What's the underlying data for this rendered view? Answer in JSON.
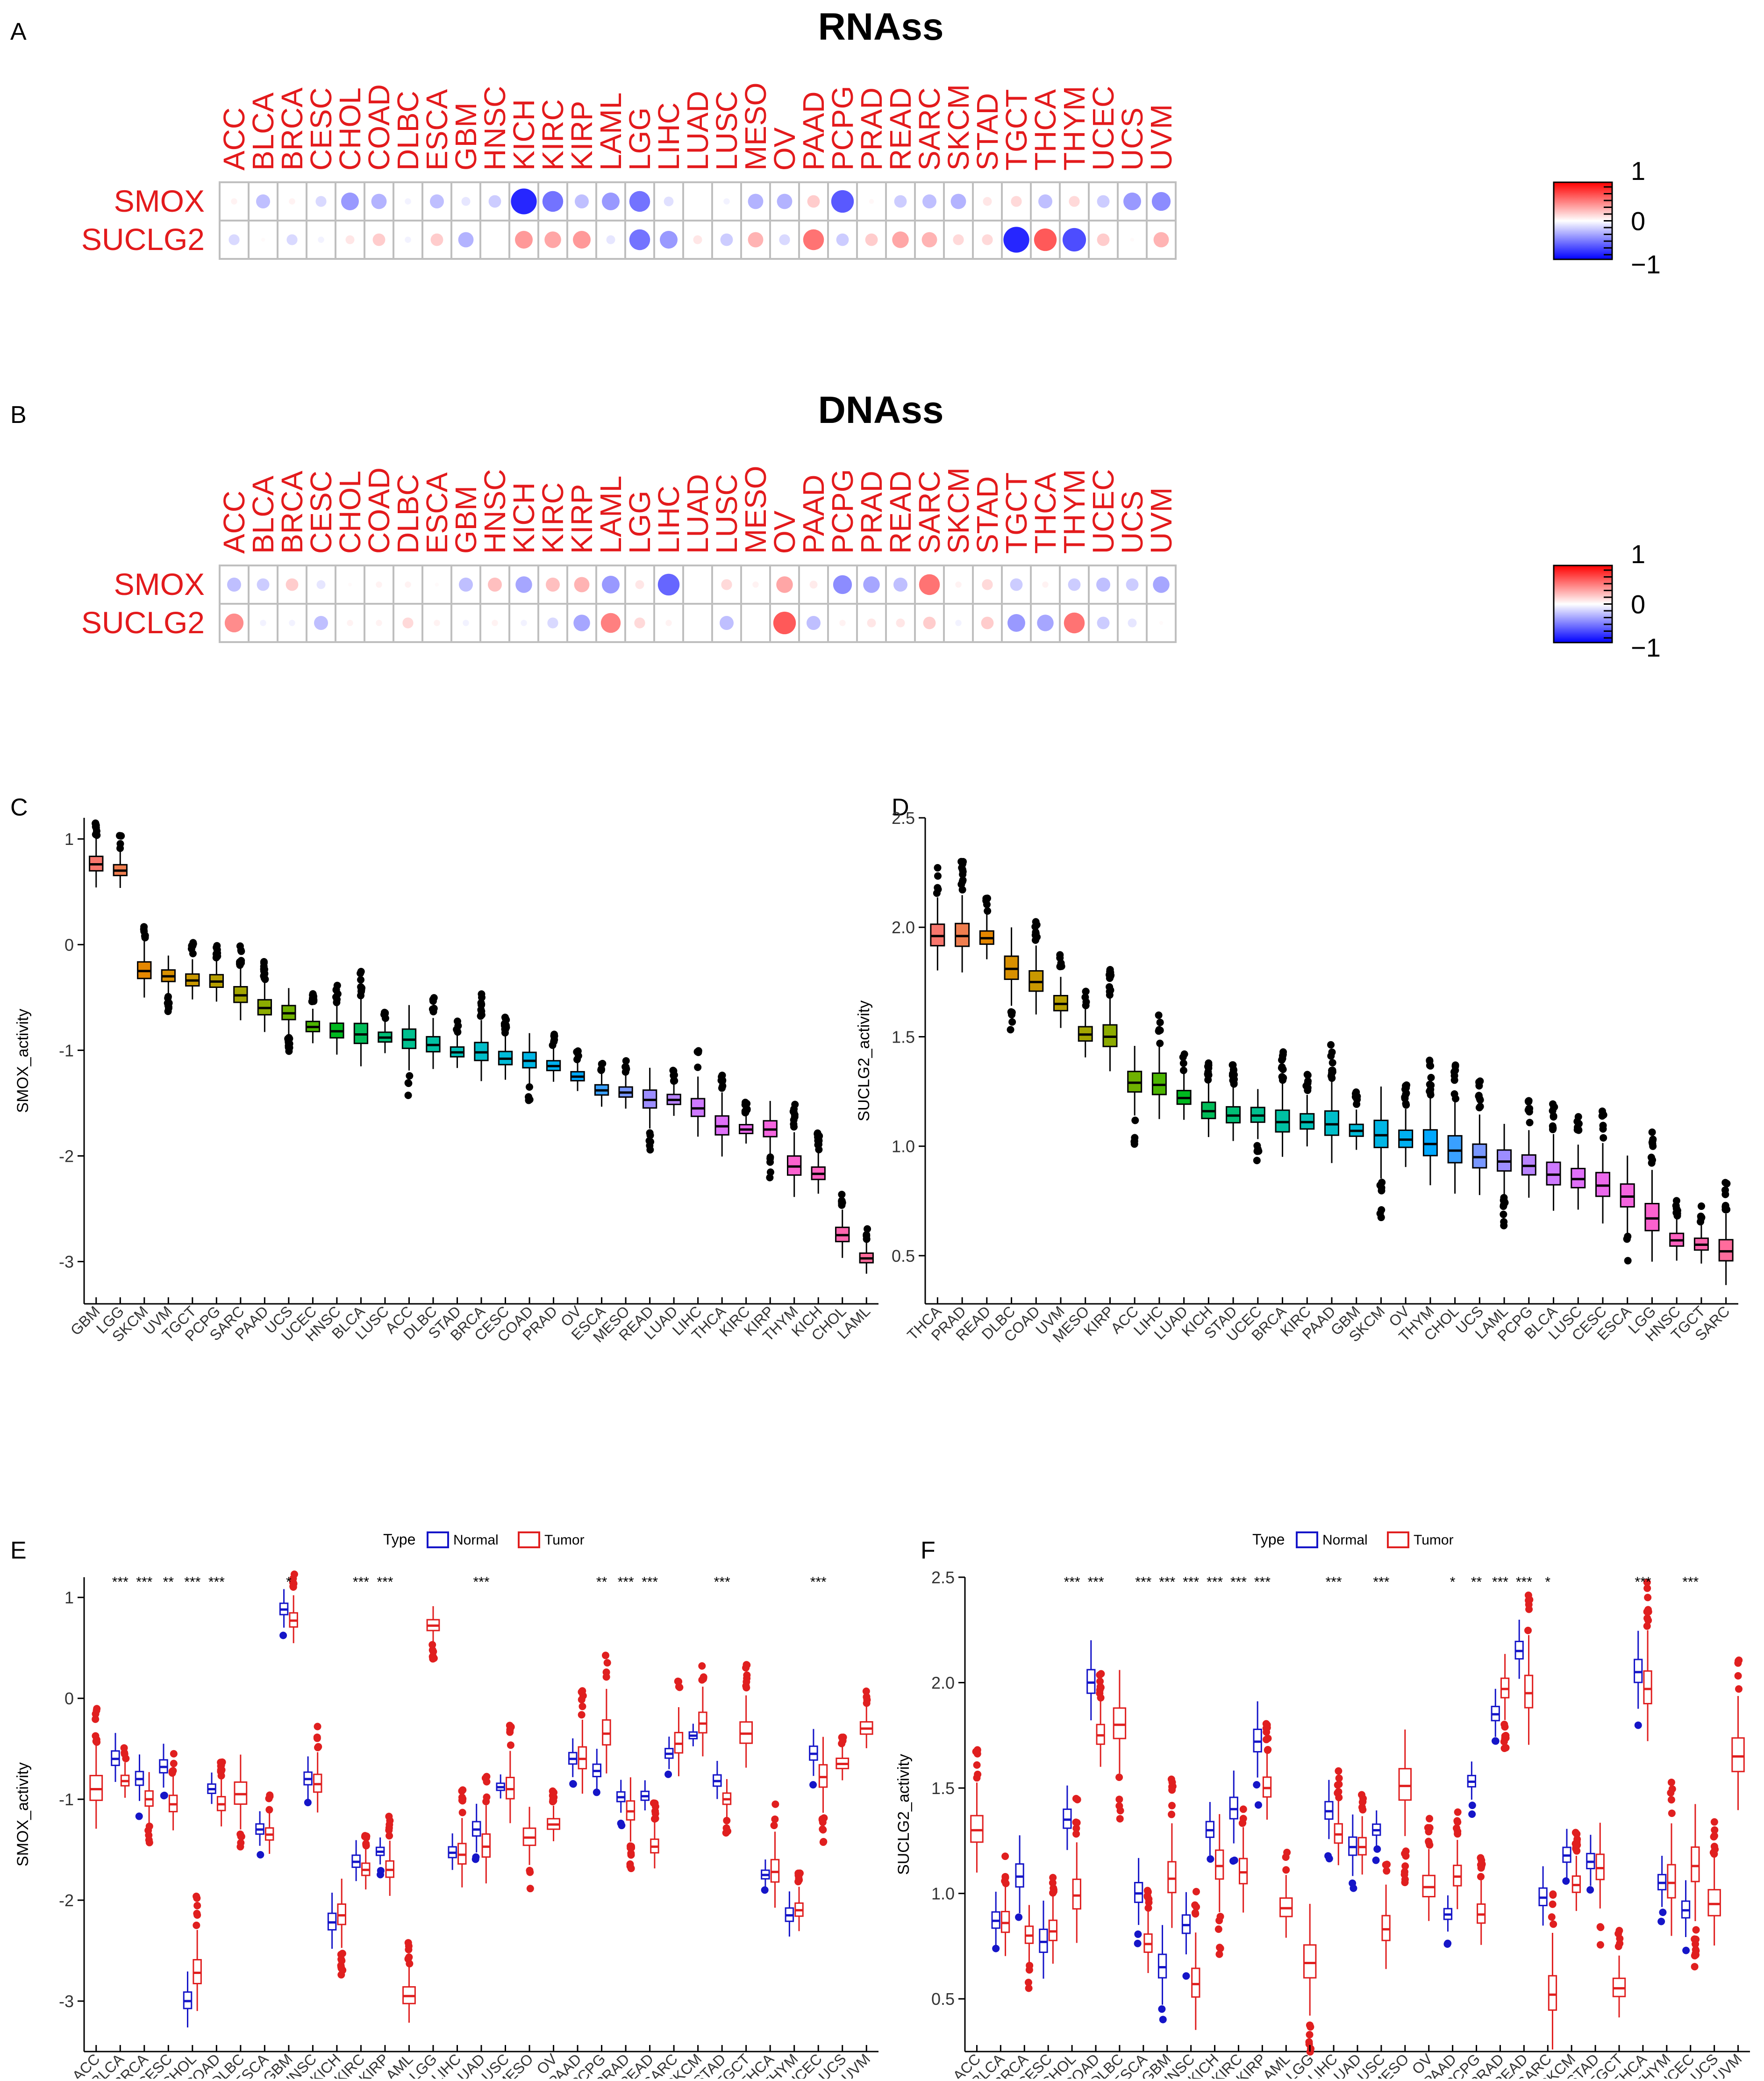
{
  "panel_labels": {
    "A": "A",
    "B": "B",
    "C": "C",
    "D": "D",
    "E": "E",
    "F": "F"
  },
  "colors": {
    "red": "#e31a1c",
    "blue": "#1f1fdf",
    "grid": "#bfbfbf",
    "normal": "#1515c8",
    "tumor": "#e01f1f",
    "dot": "#000000",
    "colorbar_top": "#ff0000",
    "colorbar_mid": "#ffffff",
    "colorbar_bottom": "#0000ff"
  },
  "chart_data": [
    {
      "type": "heatmap",
      "panel": "A",
      "title": "RNAss",
      "columns": [
        "ACC",
        "BLCA",
        "BRCA",
        "CESC",
        "CHOL",
        "COAD",
        "DLBC",
        "ESCA",
        "GBM",
        "HNSC",
        "KICH",
        "KIRC",
        "KIRP",
        "LAML",
        "LGG",
        "LIHC",
        "LUAD",
        "LUSC",
        "MESO",
        "OV",
        "PAAD",
        "PCPG",
        "PRAD",
        "READ",
        "SARC",
        "SKCM",
        "STAD",
        "TGCT",
        "THCA",
        "THYM",
        "UCEC",
        "UCS",
        "UVM"
      ],
      "rows": [
        "SMOX",
        "SUCLG2"
      ],
      "values": [
        [
          0.05,
          -0.25,
          0.05,
          -0.15,
          -0.4,
          -0.3,
          -0.05,
          -0.25,
          -0.1,
          -0.2,
          -0.85,
          -0.55,
          -0.25,
          -0.4,
          -0.55,
          -0.12,
          0,
          -0.05,
          -0.3,
          -0.3,
          0.2,
          -0.65,
          0.03,
          -0.2,
          -0.25,
          -0.3,
          0.1,
          0.15,
          -0.25,
          0.15,
          -0.2,
          -0.4,
          -0.45
        ],
        [
          -0.15,
          0.02,
          -0.15,
          -0.05,
          0.1,
          0.2,
          -0.05,
          0.2,
          -0.3,
          0,
          0.4,
          0.35,
          0.4,
          -0.1,
          -0.55,
          -0.4,
          0.1,
          -0.2,
          0.3,
          -0.15,
          0.55,
          -0.2,
          0.2,
          0.35,
          0.3,
          0.15,
          0.15,
          -0.85,
          0.65,
          -0.7,
          0.2,
          0.02,
          0.3
        ]
      ],
      "colorbar": {
        "ticks": [
          "1",
          "0",
          "−1"
        ],
        "range": [
          -1,
          1
        ]
      }
    },
    {
      "type": "heatmap",
      "panel": "B",
      "title": "DNAss",
      "columns": [
        "ACC",
        "BLCA",
        "BRCA",
        "CESC",
        "CHOL",
        "COAD",
        "DLBC",
        "ESCA",
        "GBM",
        "HNSC",
        "KICH",
        "KIRC",
        "KIRP",
        "LAML",
        "LGG",
        "LIHC",
        "LUAD",
        "LUSC",
        "MESO",
        "OV",
        "PAAD",
        "PCPG",
        "PRAD",
        "READ",
        "SARC",
        "SKCM",
        "STAD",
        "TGCT",
        "THCA",
        "THYM",
        "UCEC",
        "UCS",
        "UVM"
      ],
      "rows": [
        "SMOX",
        "SUCLG2"
      ],
      "values": [
        [
          -0.25,
          -0.2,
          0.2,
          -0.1,
          0.02,
          0.05,
          0.05,
          0.02,
          -0.25,
          0.25,
          -0.35,
          0.25,
          0.3,
          -0.4,
          0.1,
          -0.6,
          0,
          0.15,
          0.05,
          0.35,
          0.08,
          -0.45,
          -0.35,
          -0.25,
          0.55,
          0.05,
          0.15,
          -0.2,
          0.05,
          -0.2,
          -0.25,
          -0.2,
          -0.35
        ],
        [
          0.45,
          -0.05,
          -0.05,
          -0.25,
          0.05,
          0.05,
          0.15,
          0.05,
          -0.05,
          0.05,
          -0.05,
          -0.15,
          -0.35,
          0.5,
          0.15,
          0.05,
          0,
          -0.25,
          0,
          0.65,
          -0.25,
          0.05,
          0.1,
          0.1,
          0.2,
          -0.05,
          0.2,
          -0.4,
          -0.35,
          0.55,
          -0.2,
          -0.1,
          0.02
        ]
      ],
      "colorbar": {
        "ticks": [
          "1",
          "0",
          "−1"
        ],
        "range": [
          -1,
          1
        ]
      }
    },
    {
      "type": "box",
      "panel": "C",
      "ylabel": "SMOX_activity",
      "ylim": [
        -3.4,
        1.2
      ],
      "yticks": [
        1,
        0,
        -1,
        -2,
        -3
      ],
      "categories": [
        "GBM",
        "LGG",
        "SKCM",
        "UVM",
        "TGCT",
        "PCPG",
        "SARC",
        "PAAD",
        "UCS",
        "UCEC",
        "HNSC",
        "BLCA",
        "LUSC",
        "ACC",
        "DLBC",
        "STAD",
        "BRCA",
        "CESC",
        "COAD",
        "PRAD",
        "OV",
        "ESCA",
        "MESO",
        "READ",
        "LUAD",
        "LIHC",
        "THCA",
        "KIRC",
        "KIRP",
        "THYM",
        "KICH",
        "CHOL",
        "LAML"
      ],
      "medians": [
        0.76,
        0.7,
        -0.25,
        -0.3,
        -0.34,
        -0.35,
        -0.48,
        -0.6,
        -0.65,
        -0.78,
        -0.82,
        -0.85,
        -0.88,
        -0.9,
        -0.95,
        -1.02,
        -1.02,
        -1.08,
        -1.1,
        -1.15,
        -1.25,
        -1.38,
        -1.4,
        -1.47,
        -1.47,
        -1.55,
        -1.72,
        -1.75,
        -1.75,
        -2.1,
        -2.17,
        -2.75,
        -2.97
      ],
      "palette": [
        "#f8766d",
        "#f07e4f",
        "#e58700",
        "#d89000",
        "#c99800",
        "#b79f00",
        "#a3a500",
        "#8cab00",
        "#6fb100",
        "#4cb500",
        "#00b81f",
        "#00bc59",
        "#00be76",
        "#00c08f",
        "#00c1a3",
        "#00c0b7",
        "#00bec9",
        "#00bbd8",
        "#00b6e5",
        "#00b0f0",
        "#00a8ff",
        "#39a0ff",
        "#7897ff",
        "#9c8dff",
        "#b983ff",
        "#ce79ff",
        "#df70f8",
        "#eb68ec",
        "#f564df",
        "#fb61cf",
        "#ff61c0",
        "#ff65ae",
        "#ff6c9c"
      ]
    },
    {
      "type": "box",
      "panel": "D",
      "ylabel": "SUCLG2_activity",
      "ylim": [
        0.28,
        2.5
      ],
      "yticks": [
        2.5,
        2.0,
        1.5,
        1.0,
        0.5
      ],
      "ytick_labels": [
        "2.5",
        "2.0",
        "1.5",
        "1.0",
        "0.5"
      ],
      "categories": [
        "THCA",
        "PRAD",
        "READ",
        "DLBC",
        "COAD",
        "UVM",
        "MESO",
        "KIRP",
        "ACC",
        "LIHC",
        "LUAD",
        "KICH",
        "STAD",
        "UCEC",
        "BRCA",
        "KIRC",
        "PAAD",
        "GBM",
        "SKCM",
        "OV",
        "THYM",
        "CHOL",
        "UCS",
        "LAML",
        "PCPG",
        "BLCA",
        "LUSC",
        "CESC",
        "ESCA",
        "LGG",
        "HNSC",
        "TGCT",
        "SARC"
      ],
      "medians": [
        1.96,
        1.96,
        1.95,
        1.81,
        1.75,
        1.65,
        1.51,
        1.5,
        1.29,
        1.28,
        1.22,
        1.16,
        1.14,
        1.14,
        1.11,
        1.11,
        1.1,
        1.07,
        1.05,
        1.03,
        1.01,
        0.98,
        0.95,
        0.93,
        0.91,
        0.87,
        0.85,
        0.82,
        0.77,
        0.67,
        0.57,
        0.55,
        0.52
      ],
      "palette": [
        "#f8766d",
        "#f07e4f",
        "#e58700",
        "#d89000",
        "#c99800",
        "#b79f00",
        "#a3a500",
        "#8cab00",
        "#6fb100",
        "#4cb500",
        "#00b81f",
        "#00bc59",
        "#00be76",
        "#00c08f",
        "#00c1a3",
        "#00c0b7",
        "#00bec9",
        "#00bbd8",
        "#00b6e5",
        "#00b0f0",
        "#00a8ff",
        "#39a0ff",
        "#7897ff",
        "#9c8dff",
        "#b983ff",
        "#ce79ff",
        "#df70f8",
        "#eb68ec",
        "#f564df",
        "#fb61cf",
        "#ff61c0",
        "#ff65ae",
        "#ff6c9c"
      ]
    },
    {
      "type": "box",
      "panel": "E",
      "ylabel": "SMOX_activity",
      "legend": {
        "title": "Type",
        "items": [
          "Normal",
          "Tumor"
        ],
        "placement": "top"
      },
      "ylim": [
        -3.5,
        1.2
      ],
      "yticks": [
        1,
        0,
        -1,
        -2,
        -3
      ],
      "categories": [
        "ACC",
        "BLCA",
        "BRCA",
        "CESC",
        "CHOL",
        "COAD",
        "DLBC",
        "ESCA",
        "GBM",
        "HNSC",
        "KICH",
        "KIRC",
        "KIRP",
        "LAML",
        "LGG",
        "LIHC",
        "LUAD",
        "LUSC",
        "MESO",
        "OV",
        "PAAD",
        "PCPG",
        "PRAD",
        "READ",
        "SARC",
        "SKCM",
        "STAD",
        "TGCT",
        "THCA",
        "THYM",
        "UCEC",
        "UCS",
        "UVM"
      ],
      "series": [
        {
          "name": "Normal",
          "medians": [
            null,
            -0.6,
            -0.8,
            -0.68,
            -3.0,
            -0.9,
            null,
            -1.3,
            0.88,
            -0.8,
            -2.22,
            -1.62,
            -1.52,
            null,
            null,
            -1.53,
            -1.3,
            -0.88,
            null,
            null,
            -0.6,
            -0.72,
            -0.98,
            -0.97,
            -0.55,
            -0.37,
            -0.82,
            null,
            -1.75,
            -2.15,
            -0.55,
            null,
            null
          ]
        },
        {
          "name": "Tumor",
          "medians": [
            -0.9,
            -0.82,
            -1.0,
            -1.05,
            -2.72,
            -1.05,
            -0.95,
            -1.35,
            0.77,
            -0.85,
            -2.15,
            -1.7,
            -1.7,
            -2.95,
            0.72,
            -1.55,
            -1.47,
            -0.9,
            -1.38,
            -1.25,
            -0.6,
            -0.35,
            -1.12,
            -1.47,
            -0.45,
            -0.25,
            -1.0,
            -0.35,
            -1.72,
            -2.1,
            -0.78,
            -0.65,
            -0.3
          ]
        }
      ],
      "significance": [
        "",
        "***",
        "***",
        "**",
        "***",
        "***",
        "",
        "",
        "*",
        "",
        "",
        "***",
        "***",
        "",
        "",
        "",
        "***",
        "",
        "",
        "",
        "",
        "**",
        "***",
        "***",
        "",
        "",
        "***",
        "",
        "",
        "",
        "***",
        "",
        ""
      ]
    },
    {
      "type": "box",
      "panel": "F",
      "ylabel": "SUCLG2_activity",
      "legend": {
        "title": "Type",
        "items": [
          "Normal",
          "Tumor"
        ],
        "placement": "top"
      },
      "ylim": [
        0.25,
        2.5
      ],
      "yticks": [
        2.5,
        2.0,
        1.5,
        1.0,
        0.5
      ],
      "ytick_labels": [
        "2.5",
        "2.0",
        "1.5",
        "1.0",
        "0.5"
      ],
      "categories": [
        "ACC",
        "BLCA",
        "BRCA",
        "CESC",
        "CHOL",
        "COAD",
        "DLBC",
        "ESCA",
        "GBM",
        "HNSC",
        "KICH",
        "KIRC",
        "KIRP",
        "LAML",
        "LGG",
        "LIHC",
        "LUAD",
        "LUSC",
        "MESO",
        "OV",
        "PAAD",
        "PCPG",
        "PRAD",
        "READ",
        "SARC",
        "SKCM",
        "STAD",
        "TGCT",
        "THCA",
        "THYM",
        "UCEC",
        "UCS",
        "UVM"
      ],
      "series": [
        {
          "name": "Normal",
          "medians": [
            null,
            0.87,
            1.08,
            0.77,
            1.35,
            2.0,
            null,
            1.0,
            0.65,
            0.85,
            1.3,
            1.4,
            1.72,
            null,
            null,
            1.39,
            1.22,
            1.3,
            null,
            null,
            0.9,
            1.53,
            1.85,
            2.15,
            0.98,
            1.18,
            1.15,
            null,
            2.05,
            1.05,
            0.92,
            null,
            null
          ]
        },
        {
          "name": "Tumor",
          "medians": [
            1.3,
            0.86,
            0.8,
            0.82,
            0.99,
            1.75,
            1.8,
            0.76,
            1.07,
            0.57,
            1.13,
            1.1,
            1.5,
            0.93,
            0.67,
            1.28,
            1.22,
            0.83,
            1.51,
            1.03,
            1.08,
            0.9,
            1.97,
            1.95,
            0.52,
            1.04,
            1.12,
            0.55,
            1.97,
            1.05,
            1.13,
            0.95,
            1.65
          ]
        }
      ],
      "significance": [
        "",
        "",
        "",
        "",
        "***",
        "***",
        "",
        "***",
        "***",
        "***",
        "***",
        "***",
        "***",
        "",
        "",
        "***",
        "",
        "***",
        "",
        "",
        "*",
        "**",
        "***",
        "***",
        "*",
        "",
        "",
        "",
        "***",
        "",
        "***",
        "",
        ""
      ]
    }
  ]
}
